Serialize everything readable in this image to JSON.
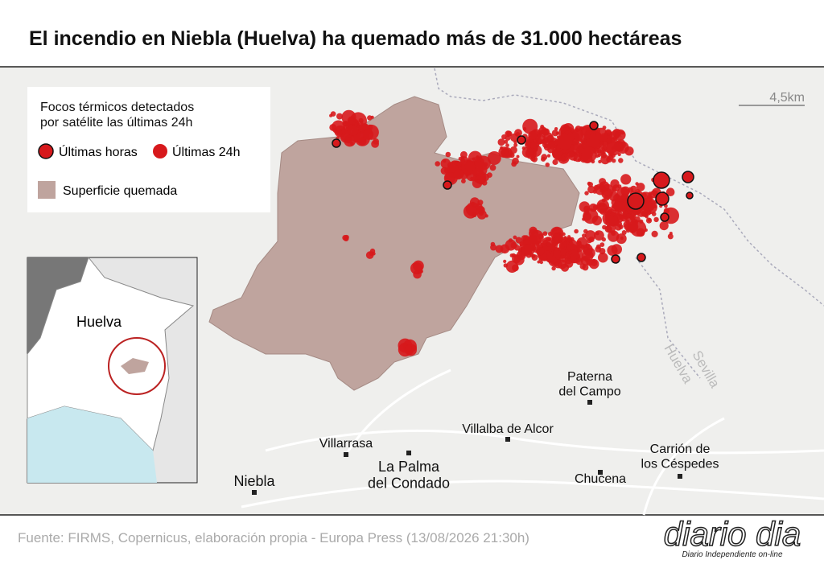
{
  "header": {
    "title": "El incendio en Niebla (Huelva) ha quemado más de 31.000 hectáreas"
  },
  "legend": {
    "title": [
      "Focos térmicos detectados",
      "por satélite las últimas 24h"
    ],
    "items": [
      "Últimas horas",
      "Últimas 24h",
      "Superficie quemada"
    ]
  },
  "scale": {
    "label": "4,5km"
  },
  "places": [
    {
      "lines": [
        "Paterna",
        "del Campo"
      ]
    },
    {
      "lines": [
        "Villalba de Alcor"
      ]
    },
    {
      "lines": [
        "Villarrasa"
      ]
    },
    {
      "lines": [
        "La Palma",
        "del Condado"
      ]
    },
    {
      "lines": [
        "Niebla"
      ]
    },
    {
      "lines": [
        "Chucena"
      ]
    },
    {
      "lines": [
        "Carrión de",
        "los Céspedes"
      ]
    }
  ],
  "borders": [
    "Sevilla",
    "Huelva"
  ],
  "inset": {
    "label": "Huelva"
  },
  "footer": {
    "source": "Fuente: FIRMS, Copernicus, elaboración propia - Europa Press (13/08/2026 21:30h)"
  },
  "logo": {
    "name": "diario dia",
    "tagline": "Diario Independiente on-line"
  }
}
